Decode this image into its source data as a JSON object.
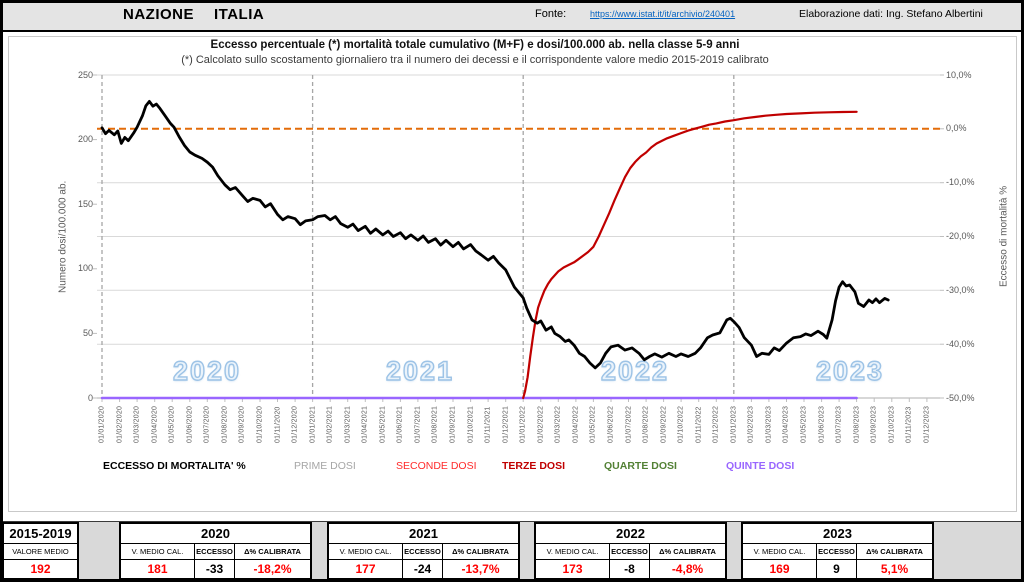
{
  "header": {
    "nation_label": "NAZIONE",
    "country": "ITALIA",
    "fonte_label": "Fonte:",
    "fonte_link": "https://www.istat.it/it/archivio/240401",
    "elaborazione": "Elaborazione dati: Ing. Stefano Albertini"
  },
  "chart": {
    "title": "Eccesso percentuale (*) mortalità totale cumulativo (M+F) e dosi/100.000 ab. nella classe 5-9 anni",
    "subtitle": "(*) Calcolato sullo scostamento giornaliero tra il numero dei decessi e il corrispondente valore medio 2015-2019 calibrato",
    "left_axis": {
      "label": "Numero dosi/100.000 ab.",
      "min": 0,
      "max": 250,
      "ticks": [
        250,
        200,
        150,
        100,
        50,
        0
      ]
    },
    "right_axis": {
      "label": "Eccesso di mortalità %",
      "min": -50,
      "max": 10,
      "ticks": [
        {
          "label": "10,0%",
          "v": 10
        },
        {
          "label": "0,0%",
          "v": 0
        },
        {
          "label": "-10,0%",
          "v": -10
        },
        {
          "label": "-20,0%",
          "v": -20
        },
        {
          "label": "-30,0%",
          "v": -30
        },
        {
          "label": "-40,0%",
          "v": -40
        },
        {
          "label": "-50,0%",
          "v": -50
        }
      ]
    },
    "x_labels": [
      "01/01/2020",
      "01/02/2020",
      "01/03/2020",
      "01/04/2020",
      "01/05/2020",
      "01/06/2020",
      "01/07/2020",
      "01/08/2020",
      "01/09/2020",
      "01/10/2020",
      "01/11/2020",
      "01/12/2020",
      "01/01/2021",
      "01/02/2021",
      "01/03/2021",
      "01/04/2021",
      "01/05/2021",
      "01/06/2021",
      "01/07/2021",
      "01/08/2021",
      "01/09/2021",
      "01/10/2021",
      "01/11/2021",
      "01/12/2021",
      "01/01/2022",
      "01/02/2022",
      "01/03/2022",
      "01/04/2022",
      "01/05/2022",
      "01/06/2022",
      "01/07/2022",
      "01/08/2022",
      "01/09/2022",
      "01/10/2022",
      "01/11/2022",
      "01/12/2022",
      "01/01/2023",
      "01/02/2023",
      "01/03/2023",
      "01/04/2023",
      "01/05/2023",
      "01/06/2023",
      "01/07/2023",
      "01/08/2023",
      "01/09/2023",
      "01/10/2023",
      "01/11/2023",
      "01/12/2023"
    ],
    "year_watermarks": [
      "2020",
      "2021",
      "2022",
      "2023"
    ]
  },
  "legend": [
    {
      "label": "ECCESSO DI MORTALITA' %",
      "color": "#000000",
      "bold": true
    },
    {
      "label": "PRIME DOSI",
      "color": "#A6A6A6",
      "bold": false
    },
    {
      "label": "SECONDE DOSI",
      "color": "#FF2A2A",
      "bold": false
    },
    {
      "label": "TERZE DOSI",
      "color": "#C00000",
      "bold": true
    },
    {
      "label": "QUARTE DOSI",
      "color": "#538135",
      "bold": true
    },
    {
      "label": "QUINTE DOSI",
      "color": "#9966FF",
      "bold": true
    }
  ],
  "chart_data": {
    "type": "line",
    "x_unit": "months since 2020-01-01 (monthly axis 01/01/2020 - 01/12/2023)",
    "zero_line": {
      "axis": "right",
      "value": 0,
      "color": "#E36C09",
      "style": "dashed"
    },
    "year_dividers_months": [
      0,
      12,
      24,
      36
    ],
    "hidden_series_at_zero": [
      "PRIME DOSI",
      "SECONDE DOSI",
      "QUARTE DOSI"
    ],
    "series": [
      {
        "name": "QUINTE DOSI",
        "axis": "left",
        "color": "#9966FF",
        "width": 2.5,
        "points": [
          [
            0,
            0
          ],
          [
            43,
            0
          ]
        ]
      },
      {
        "name": "TERZE DOSI",
        "axis": "left",
        "color": "#C00000",
        "width": 2.2,
        "points": [
          [
            24,
            0
          ],
          [
            24.1,
            5
          ],
          [
            24.25,
            16
          ],
          [
            24.4,
            32
          ],
          [
            24.55,
            47
          ],
          [
            24.7,
            60
          ],
          [
            24.85,
            70
          ],
          [
            25,
            76
          ],
          [
            25.2,
            83
          ],
          [
            25.4,
            88
          ],
          [
            25.6,
            92
          ],
          [
            25.8,
            95
          ],
          [
            26,
            98
          ],
          [
            26.3,
            101
          ],
          [
            26.6,
            103
          ],
          [
            26.9,
            105
          ],
          [
            27.1,
            107
          ],
          [
            27.4,
            110
          ],
          [
            27.7,
            113
          ],
          [
            28,
            117
          ],
          [
            28.3,
            125
          ],
          [
            28.6,
            134
          ],
          [
            28.9,
            143
          ],
          [
            29.2,
            153
          ],
          [
            29.5,
            162
          ],
          [
            29.8,
            171
          ],
          [
            30.1,
            178
          ],
          [
            30.4,
            183
          ],
          [
            30.7,
            187
          ],
          [
            31,
            190
          ],
          [
            31.3,
            194
          ],
          [
            31.6,
            197
          ],
          [
            31.9,
            199
          ],
          [
            32.2,
            201
          ],
          [
            32.6,
            203
          ],
          [
            33,
            205
          ],
          [
            33.4,
            207
          ],
          [
            33.8,
            208.5
          ],
          [
            34.2,
            210
          ],
          [
            34.6,
            211.5
          ],
          [
            35,
            212.5
          ],
          [
            35.5,
            214
          ],
          [
            36,
            215
          ],
          [
            36.6,
            216.5
          ],
          [
            37.2,
            217.5
          ],
          [
            37.8,
            218.5
          ],
          [
            38.4,
            219.2
          ],
          [
            39,
            219.8
          ],
          [
            39.8,
            220.3
          ],
          [
            40.6,
            220.8
          ],
          [
            41.4,
            221.1
          ],
          [
            42.2,
            221.4
          ],
          [
            43,
            221.5
          ]
        ]
      },
      {
        "name": "ECCESSO DI MORTALITA' %",
        "axis": "right",
        "color": "#000000",
        "width": 2.8,
        "points": [
          [
            0,
            0.2
          ],
          [
            0.2,
            -0.9
          ],
          [
            0.4,
            -0.3
          ],
          [
            0.7,
            -1.1
          ],
          [
            0.9,
            -0.4
          ],
          [
            1.1,
            -2.7
          ],
          [
            1.3,
            -1.6
          ],
          [
            1.5,
            -2.2
          ],
          [
            1.8,
            -0.8
          ],
          [
            2,
            0.3
          ],
          [
            2.3,
            2.4
          ],
          [
            2.5,
            4.3
          ],
          [
            2.7,
            5.1
          ],
          [
            2.9,
            4.2
          ],
          [
            3.1,
            4.6
          ],
          [
            3.3,
            3.8
          ],
          [
            3.6,
            2.4
          ],
          [
            3.9,
            1
          ],
          [
            4.1,
            0.3
          ],
          [
            4.4,
            -1.5
          ],
          [
            4.7,
            -3.1
          ],
          [
            5,
            -4.3
          ],
          [
            5.3,
            -4.9
          ],
          [
            5.7,
            -5.5
          ],
          [
            6,
            -6.2
          ],
          [
            6.3,
            -7.1
          ],
          [
            6.6,
            -8.7
          ],
          [
            7,
            -10.4
          ],
          [
            7.3,
            -11.3
          ],
          [
            7.6,
            -10.9
          ],
          [
            8,
            -12.4
          ],
          [
            8.3,
            -13.5
          ],
          [
            8.6,
            -12.9
          ],
          [
            9,
            -13.3
          ],
          [
            9.3,
            -14.5
          ],
          [
            9.6,
            -13.9
          ],
          [
            10,
            -15.9
          ],
          [
            10.3,
            -16.9
          ],
          [
            10.6,
            -16.3
          ],
          [
            11,
            -16.7
          ],
          [
            11.3,
            -17.8
          ],
          [
            11.6,
            -17.1
          ],
          [
            12,
            -16.9
          ],
          [
            12.3,
            -16.3
          ],
          [
            12.7,
            -16.1
          ],
          [
            13,
            -16.9
          ],
          [
            13.3,
            -16.3
          ],
          [
            13.6,
            -17.6
          ],
          [
            14,
            -18.3
          ],
          [
            14.3,
            -17.7
          ],
          [
            14.6,
            -18.9
          ],
          [
            15,
            -18.1
          ],
          [
            15.3,
            -19.4
          ],
          [
            15.6,
            -18.6
          ],
          [
            16,
            -19.7
          ],
          [
            16.3,
            -19
          ],
          [
            16.6,
            -20
          ],
          [
            17,
            -19.3
          ],
          [
            17.3,
            -20.4
          ],
          [
            17.6,
            -19.7
          ],
          [
            18,
            -20.7
          ],
          [
            18.3,
            -19.9
          ],
          [
            18.6,
            -21.1
          ],
          [
            19,
            -20.4
          ],
          [
            19.3,
            -21.6
          ],
          [
            19.6,
            -20.7
          ],
          [
            20,
            -21.9
          ],
          [
            20.3,
            -21.1
          ],
          [
            20.6,
            -22.3
          ],
          [
            21,
            -21.5
          ],
          [
            21.3,
            -22.7
          ],
          [
            21.6,
            -23.4
          ],
          [
            22,
            -24.4
          ],
          [
            22.3,
            -23.7
          ],
          [
            22.6,
            -24.9
          ],
          [
            23,
            -26.2
          ],
          [
            23.5,
            -29.4
          ],
          [
            24,
            -31.4
          ],
          [
            24.2,
            -33.3
          ],
          [
            24.5,
            -35.5
          ],
          [
            24.8,
            -36.1
          ],
          [
            25,
            -35.7
          ],
          [
            25.3,
            -37.4
          ],
          [
            25.6,
            -36.8
          ],
          [
            25.8,
            -38
          ],
          [
            26.1,
            -38.6
          ],
          [
            26.4,
            -39.5
          ],
          [
            26.6,
            -39.2
          ],
          [
            26.9,
            -40.2
          ],
          [
            27.2,
            -41.7
          ],
          [
            27.5,
            -42.3
          ],
          [
            27.8,
            -43.5
          ],
          [
            28.1,
            -44.4
          ],
          [
            28.4,
            -43.5
          ],
          [
            28.7,
            -41.7
          ],
          [
            29,
            -40.5
          ],
          [
            29.4,
            -40.2
          ],
          [
            29.8,
            -41.1
          ],
          [
            30.2,
            -40.7
          ],
          [
            30.6,
            -41.7
          ],
          [
            30.9,
            -42.9
          ],
          [
            31.2,
            -42.3
          ],
          [
            31.5,
            -41.8
          ],
          [
            31.9,
            -42.4
          ],
          [
            32.3,
            -41.7
          ],
          [
            32.7,
            -42.3
          ],
          [
            33,
            -41.8
          ],
          [
            33.4,
            -42.3
          ],
          [
            33.8,
            -41.7
          ],
          [
            34.1,
            -40.7
          ],
          [
            34.5,
            -38.8
          ],
          [
            34.8,
            -38.3
          ],
          [
            35.2,
            -37.9
          ],
          [
            35.6,
            -35.5
          ],
          [
            35.8,
            -35.2
          ],
          [
            36,
            -35.8
          ],
          [
            36.3,
            -36.9
          ],
          [
            36.6,
            -38.8
          ],
          [
            37,
            -40.2
          ],
          [
            37.3,
            -42.3
          ],
          [
            37.6,
            -41.7
          ],
          [
            38,
            -41.9
          ],
          [
            38.3,
            -40.7
          ],
          [
            38.6,
            -41.2
          ],
          [
            39,
            -39.8
          ],
          [
            39.4,
            -38.8
          ],
          [
            39.8,
            -38.6
          ],
          [
            40.1,
            -38.1
          ],
          [
            40.4,
            -38.4
          ],
          [
            40.8,
            -37.6
          ],
          [
            41.1,
            -38.2
          ],
          [
            41.3,
            -38.9
          ],
          [
            41.6,
            -35.5
          ],
          [
            41.8,
            -31.9
          ],
          [
            42,
            -29.4
          ],
          [
            42.2,
            -28.4
          ],
          [
            42.4,
            -29.2
          ],
          [
            42.6,
            -29
          ],
          [
            42.9,
            -30.3
          ],
          [
            43.1,
            -32.4
          ],
          [
            43.4,
            -33
          ],
          [
            43.7,
            -31.8
          ],
          [
            43.9,
            -32.3
          ],
          [
            44.1,
            -31.6
          ],
          [
            44.3,
            -32.3
          ],
          [
            44.6,
            -31.5
          ],
          [
            44.8,
            -31.8
          ]
        ]
      }
    ]
  },
  "table": {
    "baseline": {
      "period": "2015-2019",
      "label": "VALORE MEDIO",
      "value": "192"
    },
    "headers": {
      "v_medio": "V. MEDIO CAL.",
      "eccesso": "ECCESSO",
      "delta": "Δ% CALIBRATA"
    },
    "years": [
      {
        "year": "2020",
        "v_medio": "181",
        "eccesso": "-33",
        "delta": "-18,2%"
      },
      {
        "year": "2021",
        "v_medio": "177",
        "eccesso": "-24",
        "delta": "-13,7%"
      },
      {
        "year": "2022",
        "v_medio": "173",
        "eccesso": "-8",
        "delta": "-4,8%"
      },
      {
        "year": "2023",
        "v_medio": "169",
        "eccesso": "9",
        "delta": "5,1%"
      }
    ]
  },
  "colors": {
    "zero_line": "#E36C09",
    "grid": "#D9D9D9",
    "axis": "#BFBFBF",
    "divider": "#A6A6A6",
    "value_red": "#FF0000",
    "watermark_blue": "#9DC3E6",
    "link_blue": "#0563C1"
  }
}
